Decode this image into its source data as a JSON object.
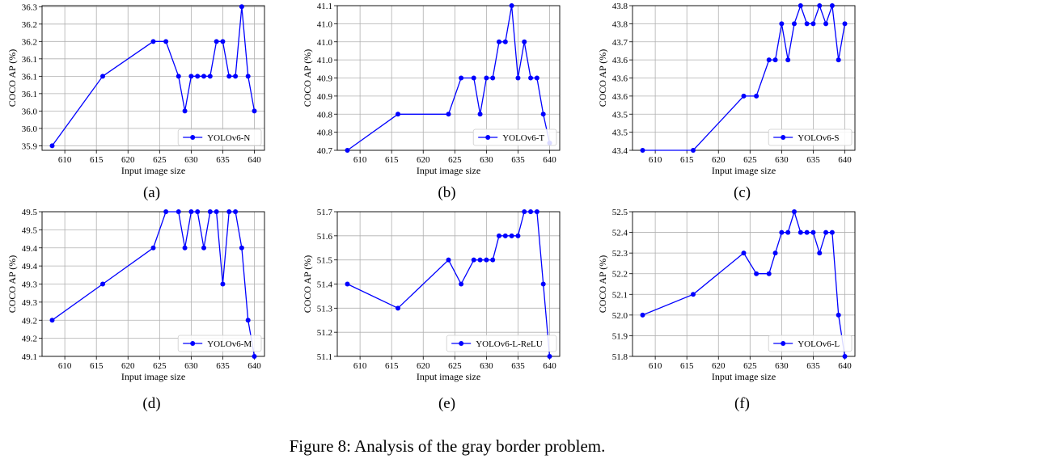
{
  "figure_caption": "Figure 8: Analysis of the gray border problem.",
  "series_color": "#0000ff",
  "chart_data": [
    {
      "type": "line",
      "panel_label": "(a)",
      "xlabel": "Input image size",
      "ylabel": "COCO AP (%)",
      "xlim": [
        606.4,
        641.6
      ],
      "ylim": [
        35.887,
        36.303
      ],
      "x_ticks": [
        610,
        615,
        620,
        625,
        630,
        635,
        640
      ],
      "y_ticks": [
        35.9,
        35.95,
        36.0,
        36.05,
        36.1,
        36.15,
        36.2,
        36.25,
        36.3
      ],
      "y_tick_labels": [
        "35.9",
        "36.0",
        "36.0",
        "36.1",
        "36.1",
        "36.1",
        "36.2",
        "36.2",
        "36.3"
      ],
      "grid": true,
      "legend_position": "lower right",
      "series": [
        {
          "name": "YOLOv6-N",
          "x": [
            608,
            616,
            624,
            626,
            628,
            629,
            630,
            631,
            632,
            633,
            634,
            635,
            636,
            637,
            638,
            639,
            640
          ],
          "y": [
            35.9,
            36.1,
            36.2,
            36.2,
            36.1,
            36.0,
            36.1,
            36.1,
            36.1,
            36.1,
            36.2,
            36.2,
            36.1,
            36.1,
            36.3,
            36.1,
            36.0
          ]
        }
      ]
    },
    {
      "type": "line",
      "panel_label": "(b)",
      "xlabel": "Input image size",
      "ylabel": "COCO AP (%)",
      "xlim": [
        606.4,
        641.6
      ],
      "ylim": [
        40.7,
        41.1
      ],
      "x_ticks": [
        610,
        615,
        620,
        625,
        630,
        635,
        640
      ],
      "y_ticks": [
        40.7,
        40.75,
        40.8,
        40.85,
        40.9,
        40.95,
        41.0,
        41.05,
        41.1
      ],
      "y_tick_labels": [
        "40.7",
        "40.8",
        "40.8",
        "40.9",
        "40.9",
        "41.0",
        "41.0",
        "41.0",
        "41.1"
      ],
      "grid": true,
      "legend_position": "lower right",
      "series": [
        {
          "name": "YOLOv6-T",
          "x": [
            608,
            616,
            624,
            626,
            628,
            629,
            630,
            631,
            632,
            633,
            634,
            635,
            636,
            637,
            638,
            639,
            640
          ],
          "y": [
            40.7,
            40.8,
            40.8,
            40.9,
            40.9,
            40.8,
            40.9,
            40.9,
            41.0,
            41.0,
            41.1,
            40.9,
            41.0,
            40.9,
            40.9,
            40.8,
            40.72
          ]
        }
      ]
    },
    {
      "type": "line",
      "panel_label": "(c)",
      "xlabel": "Input image size",
      "ylabel": "COCO AP (%)",
      "xlim": [
        606.4,
        641.6
      ],
      "ylim": [
        43.4,
        43.8
      ],
      "x_ticks": [
        610,
        615,
        620,
        625,
        630,
        635,
        640
      ],
      "y_ticks": [
        43.4,
        43.45,
        43.5,
        43.55,
        43.6,
        43.65,
        43.7,
        43.75,
        43.8
      ],
      "y_tick_labels": [
        "43.4",
        "43.5",
        "43.5",
        "43.6",
        "43.6",
        "43.6",
        "43.7",
        "43.8",
        "43.8"
      ],
      "grid": true,
      "legend_position": "lower right",
      "series": [
        {
          "name": "YOLOv6-S",
          "x": [
            608,
            616,
            624,
            626,
            628,
            629,
            630,
            631,
            632,
            633,
            634,
            635,
            636,
            637,
            638,
            639,
            640
          ],
          "y": [
            43.4,
            43.4,
            43.55,
            43.55,
            43.65,
            43.65,
            43.75,
            43.65,
            43.75,
            43.8,
            43.75,
            43.75,
            43.8,
            43.75,
            43.8,
            43.65,
            43.75
          ]
        }
      ]
    },
    {
      "type": "line",
      "panel_label": "(d)",
      "xlabel": "Input image size",
      "ylabel": "COCO AP (%)",
      "xlim": [
        606.4,
        641.6
      ],
      "ylim": [
        49.1,
        49.5
      ],
      "x_ticks": [
        610,
        615,
        620,
        625,
        630,
        635,
        640
      ],
      "y_ticks": [
        49.1,
        49.15,
        49.2,
        49.25,
        49.3,
        49.35,
        49.4,
        49.45,
        49.5
      ],
      "y_tick_labels": [
        "49.1",
        "49.2",
        "49.2",
        "49.3",
        "49.3",
        "49.4",
        "49.4",
        "49.5",
        "49.5"
      ],
      "grid": true,
      "legend_position": "lower right",
      "series": [
        {
          "name": "YOLOv6-M",
          "x": [
            608,
            616,
            624,
            626,
            628,
            629,
            630,
            631,
            632,
            633,
            634,
            635,
            636,
            637,
            638,
            639,
            640
          ],
          "y": [
            49.2,
            49.3,
            49.4,
            49.5,
            49.5,
            49.4,
            49.5,
            49.5,
            49.4,
            49.5,
            49.5,
            49.3,
            49.5,
            49.5,
            49.4,
            49.2,
            49.1
          ]
        }
      ]
    },
    {
      "type": "line",
      "panel_label": "(e)",
      "xlabel": "Input image size",
      "ylabel": "COCO AP (%)",
      "xlim": [
        606.4,
        641.6
      ],
      "ylim": [
        51.1,
        51.7
      ],
      "x_ticks": [
        610,
        615,
        620,
        625,
        630,
        635,
        640
      ],
      "y_ticks": [
        51.1,
        51.2,
        51.3,
        51.4,
        51.5,
        51.6,
        51.7
      ],
      "y_tick_labels": [
        "51.1",
        "51.2",
        "51.3",
        "51.4",
        "51.5",
        "51.6",
        "51.7"
      ],
      "grid": true,
      "legend_position": "lower right",
      "series": [
        {
          "name": "YOLOv6-L-ReLU",
          "x": [
            608,
            616,
            624,
            626,
            628,
            629,
            630,
            631,
            632,
            633,
            634,
            635,
            636,
            637,
            638,
            639,
            640
          ],
          "y": [
            51.4,
            51.3,
            51.5,
            51.4,
            51.5,
            51.5,
            51.5,
            51.5,
            51.6,
            51.6,
            51.6,
            51.6,
            51.7,
            51.7,
            51.7,
            51.4,
            51.1
          ]
        }
      ]
    },
    {
      "type": "line",
      "panel_label": "(f)",
      "xlabel": "Input image size",
      "ylabel": "COCO AP (%)",
      "xlim": [
        606.4,
        641.6
      ],
      "ylim": [
        51.8,
        52.5
      ],
      "x_ticks": [
        610,
        615,
        620,
        625,
        630,
        635,
        640
      ],
      "y_ticks": [
        51.8,
        51.9,
        52.0,
        52.1,
        52.2,
        52.3,
        52.4,
        52.5
      ],
      "y_tick_labels": [
        "51.8",
        "51.9",
        "52.0",
        "52.1",
        "52.2",
        "52.3",
        "52.4",
        "52.5"
      ],
      "grid": true,
      "legend_position": "lower right",
      "series": [
        {
          "name": "YOLOv6-L",
          "x": [
            608,
            616,
            624,
            626,
            628,
            629,
            630,
            631,
            632,
            633,
            634,
            635,
            636,
            637,
            638,
            639,
            640
          ],
          "y": [
            52.0,
            52.1,
            52.3,
            52.2,
            52.2,
            52.3,
            52.4,
            52.4,
            52.5,
            52.4,
            52.4,
            52.4,
            52.3,
            52.4,
            52.4,
            52.0,
            51.8
          ]
        }
      ]
    }
  ]
}
